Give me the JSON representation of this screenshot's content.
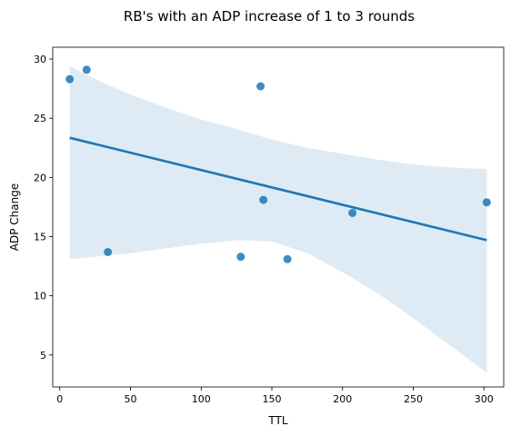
{
  "chart_data": {
    "type": "scatter",
    "title": "RB's with an ADP increase of 1 to 3 rounds",
    "xlabel": "TTL",
    "ylabel": "ADP Change",
    "xlim": [
      -5,
      314
    ],
    "ylim": [
      2.3,
      31.0
    ],
    "xticks": [
      0,
      50,
      100,
      150,
      200,
      250,
      300
    ],
    "yticks": [
      5,
      10,
      15,
      20,
      25,
      30
    ],
    "grid": false,
    "legend": "none",
    "colors": {
      "points": "#1f77b4",
      "line": "#1f77b4",
      "band": "#1f77b4"
    },
    "points": [
      {
        "x": 7,
        "y": 28.3
      },
      {
        "x": 19,
        "y": 29.1
      },
      {
        "x": 34,
        "y": 13.7
      },
      {
        "x": 128,
        "y": 13.3
      },
      {
        "x": 142,
        "y": 27.7
      },
      {
        "x": 144,
        "y": 18.1
      },
      {
        "x": 161,
        "y": 13.1
      },
      {
        "x": 207,
        "y": 17.0
      },
      {
        "x": 302,
        "y": 17.9
      }
    ],
    "regression_line": [
      {
        "x": 7,
        "y": 23.35
      },
      {
        "x": 302,
        "y": 14.7
      }
    ],
    "confidence_band": {
      "x": [
        7,
        25,
        50,
        75,
        100,
        125,
        150,
        175,
        200,
        225,
        250,
        275,
        302
      ],
      "upper": [
        29.4,
        28.3,
        27.0,
        25.9,
        24.9,
        24.1,
        23.2,
        22.5,
        22.0,
        21.5,
        21.1,
        20.85,
        20.7
      ],
      "lower": [
        13.1,
        13.3,
        13.6,
        14.0,
        14.4,
        14.7,
        14.6,
        13.6,
        12.0,
        10.2,
        8.1,
        5.9,
        3.5
      ]
    }
  }
}
